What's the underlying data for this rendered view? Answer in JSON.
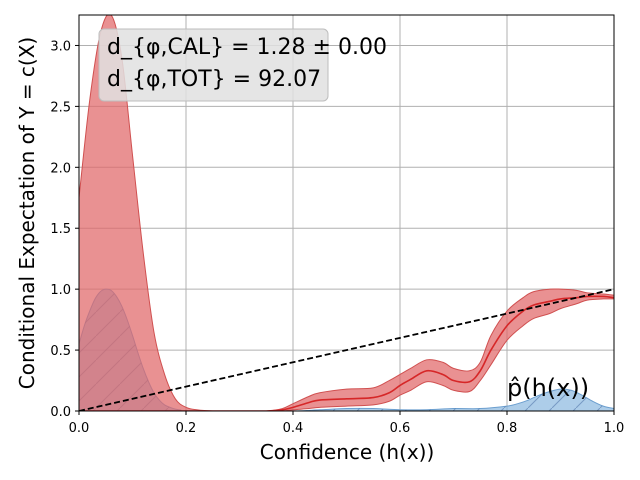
{
  "chart_data": {
    "type": "area",
    "xlabel": "Confidence (h(x))",
    "ylabel": "Conditional Expectation of Y = c(X)",
    "xlim": [
      0.0,
      1.0
    ],
    "ylim": [
      0.0,
      3.25
    ],
    "x_ticks": [
      "0.0",
      "0.2",
      "0.4",
      "0.6",
      "0.8",
      "1.0"
    ],
    "y_ticks": [
      "0.0",
      "0.5",
      "1.0",
      "1.5",
      "2.0",
      "2.5",
      "3.0"
    ],
    "grid": true,
    "stats_box": {
      "line1": "d_{φ,CAL} = 1.28 ± 0.00",
      "line2": "d_{φ,TOT} = 92.07"
    },
    "density_label": "p̂(h(x))",
    "reference_line": {
      "x": [
        0.0,
        1.0
      ],
      "y": [
        0.0,
        1.0
      ]
    },
    "series": [
      {
        "x": [
          0.0,
          0.02,
          0.04,
          0.06,
          0.08,
          0.1,
          0.12,
          0.14,
          0.16,
          0.18,
          0.2,
          0.22,
          0.25,
          0.3,
          0.35,
          0.38,
          0.4,
          0.43,
          0.45,
          0.5,
          0.55,
          0.58,
          0.6,
          0.62,
          0.65,
          0.68,
          0.7,
          0.73,
          0.75,
          0.77,
          0.8,
          0.83,
          0.85,
          0.88,
          0.9,
          0.93,
          0.95,
          0.98,
          1.0
        ],
        "mean": [
          0.0,
          0.0,
          0.0,
          0.0,
          0.0,
          0.0,
          0.0,
          0.0,
          0.0,
          0.0,
          0.0,
          0.0,
          0.0,
          0.0,
          0.0,
          0.01,
          0.03,
          0.07,
          0.09,
          0.1,
          0.11,
          0.15,
          0.21,
          0.26,
          0.33,
          0.3,
          0.25,
          0.24,
          0.33,
          0.5,
          0.7,
          0.82,
          0.87,
          0.9,
          0.92,
          0.93,
          0.94,
          0.94,
          0.93
        ],
        "upper": [
          1.75,
          2.55,
          3.1,
          3.25,
          2.9,
          2.1,
          1.3,
          0.65,
          0.3,
          0.1,
          0.03,
          0.01,
          0.0,
          0.0,
          0.0,
          0.02,
          0.06,
          0.12,
          0.15,
          0.18,
          0.19,
          0.25,
          0.3,
          0.35,
          0.42,
          0.4,
          0.35,
          0.33,
          0.4,
          0.62,
          0.82,
          0.93,
          0.98,
          1.0,
          1.0,
          0.99,
          0.97,
          0.96,
          0.95
        ],
        "lower": [
          0.0,
          0.0,
          0.0,
          0.0,
          0.0,
          0.0,
          0.0,
          0.0,
          0.0,
          0.0,
          0.0,
          0.0,
          0.0,
          0.0,
          0.0,
          0.0,
          0.01,
          0.02,
          0.03,
          0.04,
          0.05,
          0.08,
          0.13,
          0.17,
          0.24,
          0.21,
          0.17,
          0.16,
          0.25,
          0.38,
          0.58,
          0.7,
          0.76,
          0.8,
          0.84,
          0.88,
          0.91,
          0.92,
          0.92
        ]
      },
      {
        "x": [
          0.0,
          0.01,
          0.02,
          0.03,
          0.04,
          0.05,
          0.06,
          0.07,
          0.08,
          0.09,
          0.1,
          0.11,
          0.12,
          0.13,
          0.14,
          0.15,
          0.16,
          0.17,
          0.18,
          0.19,
          0.2,
          0.3,
          0.4,
          0.45,
          0.5,
          0.55,
          0.6,
          0.65,
          0.7,
          0.75,
          0.8,
          0.82,
          0.84,
          0.86,
          0.88,
          0.9,
          0.92,
          0.94,
          0.96,
          0.98,
          1.0
        ],
        "values": [
          0.55,
          0.7,
          0.82,
          0.92,
          0.98,
          1.0,
          0.99,
          0.94,
          0.86,
          0.75,
          0.62,
          0.48,
          0.35,
          0.24,
          0.15,
          0.09,
          0.05,
          0.03,
          0.015,
          0.008,
          0.0,
          0.0,
          0.0,
          0.01,
          0.02,
          0.02,
          0.01,
          0.01,
          0.02,
          0.02,
          0.04,
          0.06,
          0.09,
          0.13,
          0.16,
          0.18,
          0.17,
          0.13,
          0.08,
          0.04,
          0.02
        ]
      }
    ],
    "colors": {
      "band": "#e06668",
      "band_edge": "#d05050",
      "mean_line": "#d62728",
      "density_fill": "#8ab8e0",
      "density_edge": "#6c9fcf",
      "hatch": "#4a6fa5",
      "grid": "#b0b0b0",
      "stats_bg": "#e0e0e0"
    }
  }
}
